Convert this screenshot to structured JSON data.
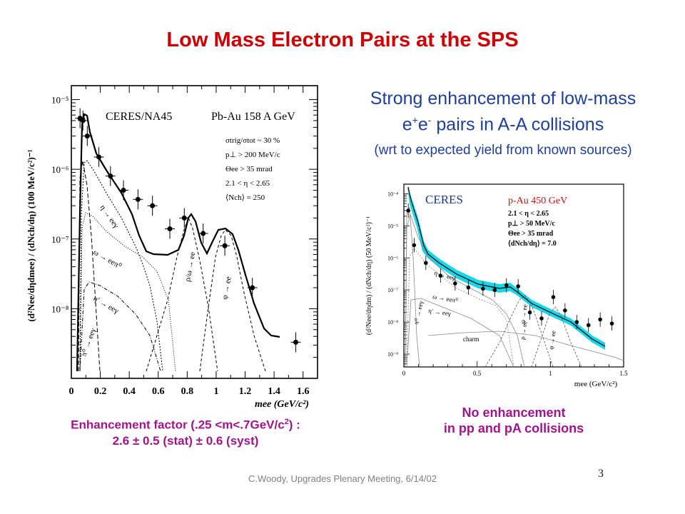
{
  "slide": {
    "title": "Low Mass Electron Pairs at the SPS",
    "headline_line1": "Strong enhancement of low-mass",
    "headline_line2_main": "e",
    "headline_line2_sup1": "+",
    "headline_line2_mid": "e",
    "headline_line2_sup2": "-",
    "headline_line2_tail": " pairs in A-A collisions",
    "headline_line3": "(wrt to expected yield from known sources)",
    "left_caption_line1_a": "Enhancement factor (.25 <m<.7GeV/c",
    "left_caption_line1_sup": "2",
    "left_caption_line1_b": ") :",
    "left_caption_line2": "2.6 ± 0.5 (stat) ± 0.6 (syst)",
    "right_caption_line1": "No enhancement",
    "right_caption_line2": "in pp and pA collisions",
    "footer": "C.Woody, Upgrades Plenary Meeting, 6/14/02",
    "page_number": "3"
  },
  "chart_data": [
    {
      "type": "line",
      "experiment_label": "CERES/NA45",
      "system_label": "Pb-Au 158 A GeV",
      "cuts": [
        "σtrig/σtot ~ 30 %",
        "p⊥ > 200 MeV/c",
        "Θee > 35 mrad",
        "2.1 < η < 2.65",
        "⟨Nch⟩ = 250"
      ],
      "ylabel": "(d²Nee/dηdmee) / (dNch/dη) (100 MeV/c²)⁻¹",
      "xlabel": "mee (GeV/c²)",
      "xlim": [
        0,
        1.7
      ],
      "ylim_log10": [
        -9,
        -4.8
      ],
      "x_ticks": [
        "0",
        "0.2",
        "0.4",
        "0.6",
        "0.8",
        "1",
        "1.2",
        "1.4",
        "1.6"
      ],
      "y_ticks": [
        "10⁻⁵",
        "10⁻⁶",
        "10⁻⁷",
        "10⁻⁸"
      ],
      "source_labels": [
        "η → eeγ",
        "ω → eeπ⁰",
        "η' → eeγ",
        "π⁰ → eeγ",
        "ρ/ω → ee",
        "φ → ee"
      ],
      "data_points": [
        {
          "x": 0.06,
          "y": 5.4e-06
        },
        {
          "x": 0.08,
          "y": 5e-06
        },
        {
          "x": 0.11,
          "y": 3e-06
        },
        {
          "x": 0.19,
          "y": 1.5e-06
        },
        {
          "x": 0.27,
          "y": 8e-07
        },
        {
          "x": 0.36,
          "y": 5e-07
        },
        {
          "x": 0.46,
          "y": 3.7e-07
        },
        {
          "x": 0.56,
          "y": 3e-07
        },
        {
          "x": 0.68,
          "y": 1.4e-07
        },
        {
          "x": 0.78,
          "y": 2e-07
        },
        {
          "x": 0.91,
          "y": 1.2e-07
        },
        {
          "x": 1.06,
          "y": 8e-08
        },
        {
          "x": 1.25,
          "y": 2e-08
        },
        {
          "x": 1.55,
          "y": 3.3e-09
        }
      ]
    },
    {
      "type": "line",
      "experiment_label": "CERES",
      "system_label": "p-Au 450 GeV",
      "cuts": [
        "2.1 < η < 2.65",
        "p⊥ > 50 MeV/c",
        "Θee > 35 mrad",
        "⟨dNch/dη⟩ = 7.0"
      ],
      "ylabel": "(d²Nee/dηdm) / (dNch/dη) (50 MeV/c²)⁻¹",
      "xlabel": "mee (GeV/c²)",
      "xlim": [
        0,
        1.5
      ],
      "ylim_log10": [
        -9.4,
        -3.7
      ],
      "x_ticks": [
        "0",
        "0.5",
        "1",
        "1.5"
      ],
      "y_ticks": [
        "10⁻⁴",
        "10⁻⁵",
        "10⁻⁶",
        "10⁻⁷",
        "10⁻⁸",
        "10⁻⁹"
      ],
      "source_labels": [
        "η → eeγ",
        "ω → eeπ⁰",
        "η' → eeγ",
        "π⁰ → eeγ",
        "ρ → ee",
        "ω → ee",
        "φ → ee",
        "charm"
      ],
      "data_points": [
        {
          "x": 0.03,
          "y": 3e-05
        },
        {
          "x": 0.07,
          "y": 2.5e-06
        },
        {
          "x": 0.15,
          "y": 7e-07
        },
        {
          "x": 0.25,
          "y": 2.8e-07
        },
        {
          "x": 0.35,
          "y": 1.6e-07
        },
        {
          "x": 0.44,
          "y": 1.2e-07
        },
        {
          "x": 0.54,
          "y": 1.1e-07
        },
        {
          "x": 0.62,
          "y": 1e-07
        },
        {
          "x": 0.7,
          "y": 1.4e-07
        },
        {
          "x": 0.78,
          "y": 1.3e-07
        },
        {
          "x": 0.86,
          "y": 2e-08
        },
        {
          "x": 0.94,
          "y": 1.3e-08
        },
        {
          "x": 1.02,
          "y": 6e-08
        },
        {
          "x": 1.1,
          "y": 2.3e-08
        },
        {
          "x": 1.18,
          "y": 1e-08
        },
        {
          "x": 1.26,
          "y": 8e-09
        },
        {
          "x": 1.34,
          "y": 1.2e-08
        },
        {
          "x": 1.42,
          "y": 9e-09
        }
      ]
    }
  ]
}
